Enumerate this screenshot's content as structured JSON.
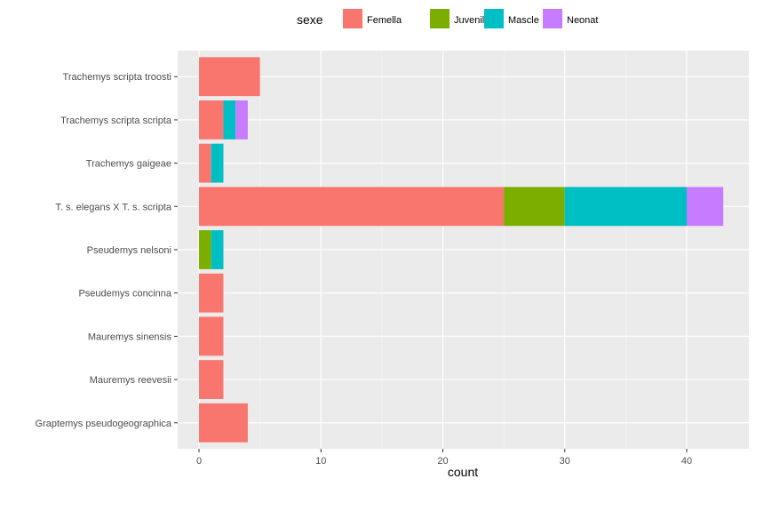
{
  "chart_data": {
    "type": "bar",
    "orientation": "horizontal",
    "stacked": true,
    "title": "",
    "xlabel": "count",
    "ylabel": "",
    "xlim": [
      0,
      45
    ],
    "xticks": [
      0,
      10,
      20,
      30,
      40
    ],
    "grid": true,
    "legend": {
      "title": "sexe",
      "position": "top"
    },
    "categories": [
      "Trachemys scripta troosti",
      "Trachemys scripta scripta",
      "Trachemys gaigeae",
      "T. s. elegans X T. s. scripta",
      "Pseudemys nelsoni",
      "Pseudemys concinna",
      "Mauremys sinensis",
      "Mauremys reevesii",
      "Graptemys pseudogeographica"
    ],
    "series": [
      {
        "name": "Femella",
        "color": "#F8766D",
        "values": [
          5,
          2,
          1,
          25,
          0,
          2,
          2,
          2,
          4
        ]
      },
      {
        "name": "Juvenil",
        "color": "#7CAE00",
        "values": [
          0,
          0,
          0,
          5,
          1,
          0,
          0,
          0,
          0
        ]
      },
      {
        "name": "Mascle",
        "color": "#00BFC4",
        "values": [
          0,
          1,
          1,
          10,
          1,
          0,
          0,
          0,
          0
        ]
      },
      {
        "name": "Neonat",
        "color": "#C77CFF",
        "values": [
          0,
          1,
          0,
          3,
          0,
          0,
          0,
          0,
          0
        ]
      }
    ]
  }
}
